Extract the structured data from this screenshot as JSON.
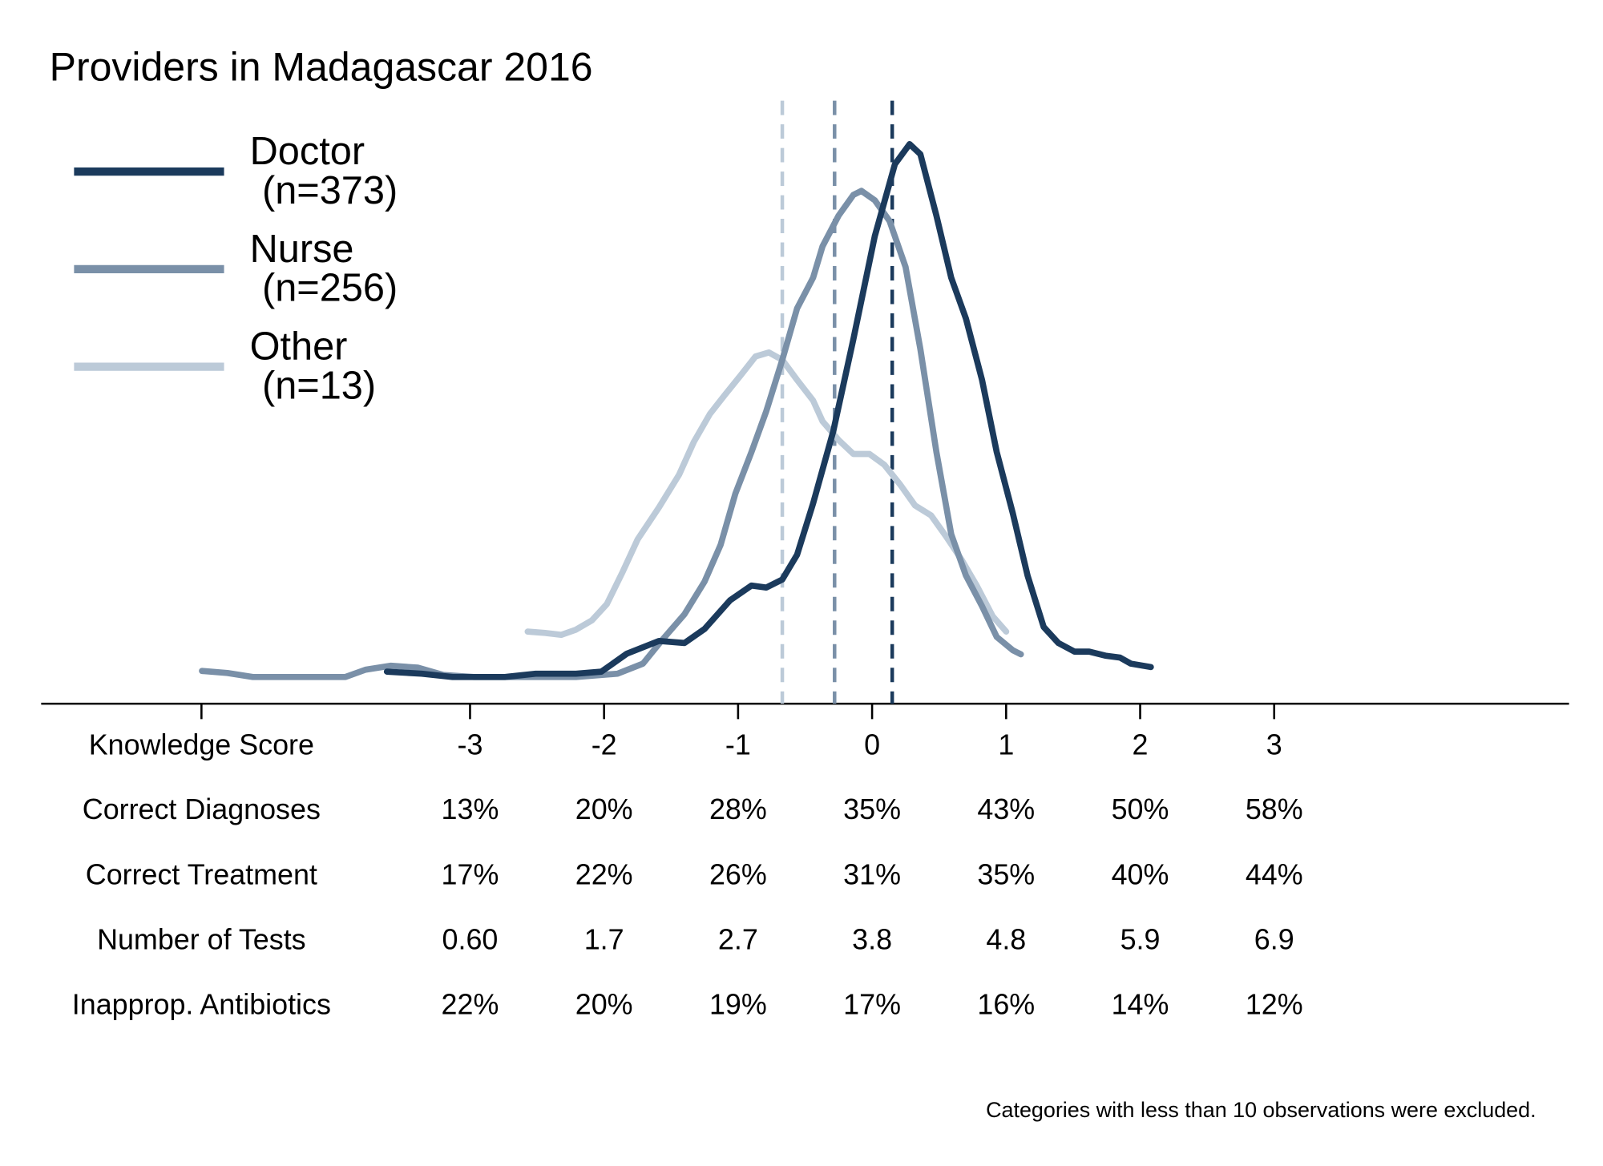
{
  "chart_data": {
    "type": "line",
    "title": "Providers in Madagascar 2016",
    "xlabel": "Knowledge Score",
    "xlim": [
      -6.2,
      5.2
    ],
    "ylim": [
      0,
      0.9
    ],
    "xticks": [
      -3,
      -2,
      -1,
      0,
      1,
      2,
      3
    ],
    "series": [
      {
        "name": "Doctor",
        "count": "(n=373)",
        "color": "#1b3a5c",
        "mean": 0.15,
        "x": [
          -3.62,
          -3.36,
          -3.13,
          -2.74,
          -2.51,
          -2.21,
          -2.02,
          -1.83,
          -1.59,
          -1.4,
          -1.25,
          -1.06,
          -0.9,
          -0.79,
          -0.67,
          -0.56,
          -0.44,
          -0.29,
          -0.14,
          0.02,
          0.17,
          0.28,
          0.36,
          0.48,
          0.59,
          0.7,
          0.82,
          0.93,
          1.05,
          1.16,
          1.28,
          1.39,
          1.51,
          1.62,
          1.74,
          1.85,
          1.93,
          2.08
        ],
        "values": [
          0.048,
          0.045,
          0.04,
          0.04,
          0.045,
          0.045,
          0.048,
          0.075,
          0.094,
          0.091,
          0.112,
          0.155,
          0.177,
          0.174,
          0.186,
          0.223,
          0.3,
          0.408,
          0.546,
          0.7,
          0.808,
          0.838,
          0.823,
          0.731,
          0.638,
          0.577,
          0.485,
          0.377,
          0.285,
          0.192,
          0.115,
          0.091,
          0.078,
          0.078,
          0.072,
          0.069,
          0.06,
          0.055
        ]
      },
      {
        "name": "Nurse",
        "count": "(n=256)",
        "color": "#7a90a8",
        "mean": -0.28,
        "x": [
          -5.0,
          -4.81,
          -4.62,
          -3.93,
          -3.78,
          -3.59,
          -3.39,
          -3.2,
          -2.97,
          -2.67,
          -2.21,
          -1.9,
          -1.71,
          -1.56,
          -1.4,
          -1.25,
          -1.13,
          -1.02,
          -0.9,
          -0.79,
          -0.67,
          -0.56,
          -0.44,
          -0.37,
          -0.25,
          -0.14,
          -0.08,
          0.02,
          0.13,
          0.25,
          0.36,
          0.48,
          0.59,
          0.7,
          0.82,
          0.93,
          1.05,
          1.11
        ],
        "values": [
          0.049,
          0.046,
          0.04,
          0.04,
          0.051,
          0.057,
          0.054,
          0.043,
          0.04,
          0.04,
          0.04,
          0.045,
          0.06,
          0.097,
          0.134,
          0.183,
          0.238,
          0.315,
          0.377,
          0.438,
          0.515,
          0.592,
          0.638,
          0.685,
          0.731,
          0.762,
          0.768,
          0.754,
          0.723,
          0.654,
          0.531,
          0.377,
          0.254,
          0.192,
          0.146,
          0.1,
          0.08,
          0.074
        ]
      },
      {
        "name": "Other",
        "count": "(n=13)",
        "color": "#bccad8",
        "mean": -0.67,
        "x": [
          -2.57,
          -2.44,
          -2.32,
          -2.21,
          -2.09,
          -1.98,
          -1.86,
          -1.75,
          -1.59,
          -1.44,
          -1.33,
          -1.21,
          -1.1,
          -0.98,
          -0.87,
          -0.77,
          -0.67,
          -0.56,
          -0.44,
          -0.37,
          -0.25,
          -0.14,
          -0.02,
          0.09,
          0.21,
          0.32,
          0.44,
          0.55,
          0.67,
          0.78,
          0.9,
          1.0
        ],
        "values": [
          0.108,
          0.106,
          0.103,
          0.111,
          0.125,
          0.149,
          0.198,
          0.246,
          0.294,
          0.343,
          0.392,
          0.434,
          0.462,
          0.492,
          0.52,
          0.526,
          0.515,
          0.485,
          0.454,
          0.423,
          0.395,
          0.374,
          0.374,
          0.358,
          0.328,
          0.297,
          0.282,
          0.251,
          0.215,
          0.177,
          0.131,
          0.108
        ]
      }
    ],
    "table": {
      "rows": [
        {
          "label": "Correct Diagnoses",
          "values": [
            "13%",
            "20%",
            "28%",
            "35%",
            "43%",
            "50%",
            "58%"
          ]
        },
        {
          "label": "Correct Treatment",
          "values": [
            "17%",
            "22%",
            "26%",
            "31%",
            "35%",
            "40%",
            "44%"
          ]
        },
        {
          "label": "Number of Tests",
          "values": [
            "0.60",
            "1.7",
            "2.7",
            "3.8",
            "4.8",
            "5.9",
            "6.9"
          ]
        },
        {
          "label": "Inapprop. Antibiotics",
          "values": [
            "22%",
            "20%",
            "19%",
            "17%",
            "16%",
            "14%",
            "12%"
          ]
        }
      ]
    },
    "note": "Categories with less than 10 observations were excluded."
  }
}
